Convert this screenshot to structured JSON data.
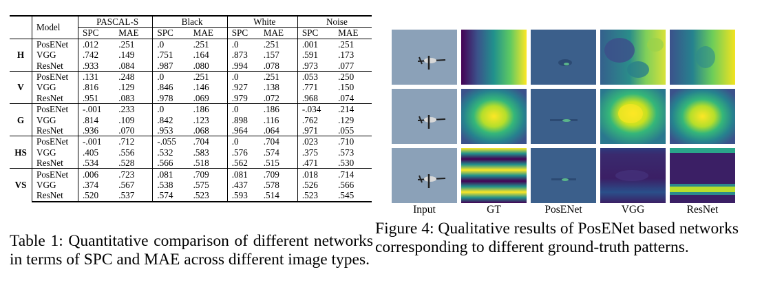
{
  "table": {
    "header": {
      "model": "Model",
      "datasets": [
        "PASCAL-S",
        "Black",
        "White",
        "Noise"
      ],
      "metrics": [
        "SPC",
        "MAE"
      ]
    },
    "groups": [
      {
        "label": "H",
        "rows": [
          {
            "model": "PosENet",
            "values": [
              ".012",
              ".251",
              ".0",
              ".251",
              ".0",
              ".251",
              ".001",
              ".251"
            ]
          },
          {
            "model": "VGG",
            "values": [
              ".742",
              ".149",
              ".751",
              ".164",
              ".873",
              ".157",
              ".591",
              ".173"
            ]
          },
          {
            "model": "ResNet",
            "values": [
              ".933",
              ".084",
              ".987",
              ".080",
              ".994",
              ".078",
              ".973",
              ".077"
            ]
          }
        ]
      },
      {
        "label": "V",
        "rows": [
          {
            "model": "PosENet",
            "values": [
              ".131",
              ".248",
              ".0",
              ".251",
              ".0",
              ".251",
              ".053",
              ".250"
            ]
          },
          {
            "model": "VGG",
            "values": [
              ".816",
              ".129",
              ".846",
              ".146",
              ".927",
              ".138",
              ".771",
              ".150"
            ]
          },
          {
            "model": "ResNet",
            "values": [
              ".951",
              ".083",
              ".978",
              ".069",
              ".979",
              ".072",
              ".968",
              ".074"
            ]
          }
        ]
      },
      {
        "label": "G",
        "rows": [
          {
            "model": "PosENet",
            "values": [
              "-.001",
              ".233",
              ".0",
              ".186",
              ".0",
              ".186",
              "-.034",
              ".214"
            ]
          },
          {
            "model": "VGG",
            "values": [
              ".814",
              ".109",
              ".842",
              ".123",
              ".898",
              ".116",
              ".762",
              ".129"
            ]
          },
          {
            "model": "ResNet",
            "values": [
              ".936",
              ".070",
              ".953",
              ".068",
              ".964",
              ".064",
              ".971",
              ".055"
            ]
          }
        ]
      },
      {
        "label": "HS",
        "rows": [
          {
            "model": "PosENet",
            "values": [
              "-.001",
              ".712",
              "-.055",
              ".704",
              ".0",
              ".704",
              ".023",
              ".710"
            ]
          },
          {
            "model": "VGG",
            "values": [
              ".405",
              ".556",
              ".532",
              ".583",
              ".576",
              ".574",
              ".375",
              ".573"
            ]
          },
          {
            "model": "ResNet",
            "values": [
              ".534",
              ".528",
              ".566",
              ".518",
              ".562",
              ".515",
              ".471",
              ".530"
            ]
          }
        ]
      },
      {
        "label": "VS",
        "rows": [
          {
            "model": "PosENet",
            "values": [
              ".006",
              ".723",
              ".081",
              ".709",
              ".081",
              ".709",
              ".018",
              ".714"
            ]
          },
          {
            "model": "VGG",
            "values": [
              ".374",
              ".567",
              ".538",
              ".575",
              ".437",
              ".578",
              ".526",
              ".566"
            ]
          },
          {
            "model": "ResNet",
            "values": [
              ".520",
              ".537",
              ".574",
              ".523",
              ".593",
              ".514",
              ".523",
              ".545"
            ]
          }
        ]
      }
    ]
  },
  "table_caption": "Table 1: Quantitative comparison of different networks in terms of SPC and MAE across different image types.",
  "figure": {
    "columns": [
      "Input",
      "GT",
      "PosENet",
      "VGG",
      "ResNet"
    ],
    "rows": [
      "horizontal",
      "gaussian",
      "horizontal-stripes"
    ]
  },
  "figure_caption": "Figure 4: Qualitative results of PosENet based networks corresponding to different ground-truth patterns.",
  "colors": {
    "input_bg": "#8ba1b8",
    "viridis_dark": "#440154",
    "viridis_mid": "#21918c",
    "viridis_yellow": "#fde725",
    "posenet_bg": "#3b5f8b"
  }
}
